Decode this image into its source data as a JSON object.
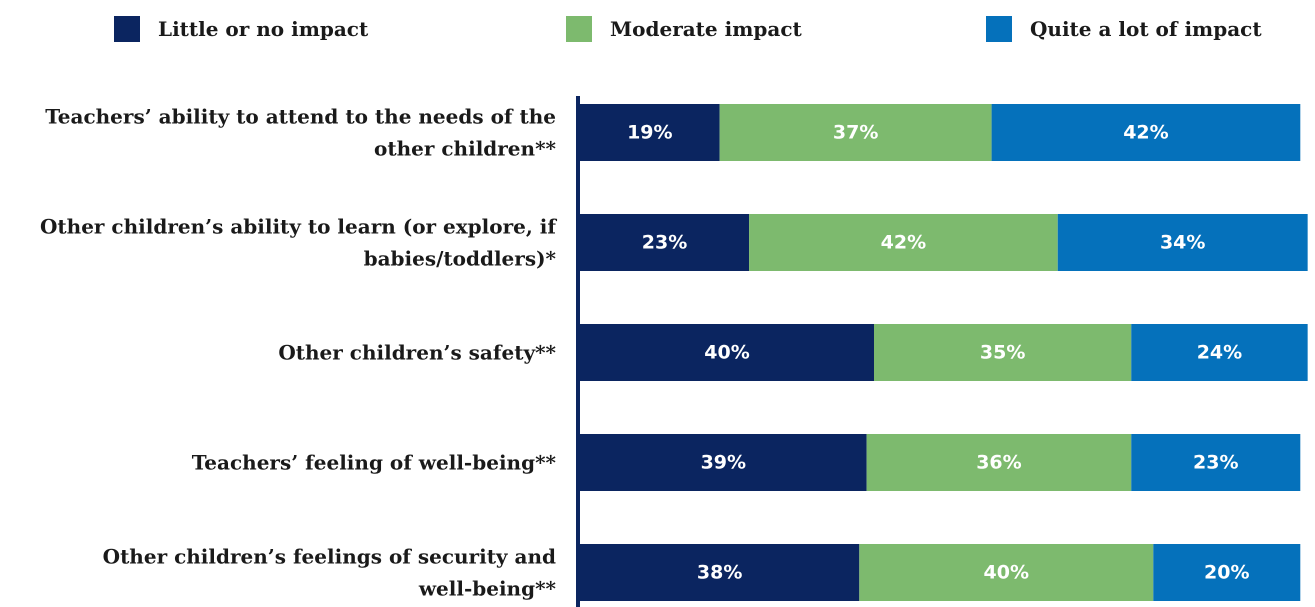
{
  "legend": {
    "items": [
      {
        "label": "Little or no impact",
        "color": "#0b2560"
      },
      {
        "label": "Moderate impact",
        "color": "#7dba6e"
      },
      {
        "label": "Quite a lot of impact",
        "color": "#0571bb"
      }
    ]
  },
  "chart_data": {
    "type": "bar",
    "orientation": "horizontal",
    "stacked": true,
    "categories": [
      [
        "Teachers’ ability to attend to the needs of the",
        "other children**"
      ],
      [
        "Other children’s ability to learn (or explore, if",
        "babies/toddlers)*"
      ],
      [
        "Other children’s safety**"
      ],
      [
        "Teachers’ feeling of well-being**"
      ],
      [
        "Other children’s feelings of security and",
        "well-being**"
      ]
    ],
    "series": [
      {
        "name": "Little or no impact",
        "color": "#0b2560",
        "values": [
          19,
          23,
          40,
          39,
          38
        ]
      },
      {
        "name": "Moderate impact",
        "color": "#7dba6e",
        "values": [
          37,
          42,
          35,
          36,
          40
        ]
      },
      {
        "name": "Quite a lot of impact",
        "color": "#0571bb",
        "values": [
          42,
          34,
          24,
          23,
          20
        ]
      }
    ],
    "value_suffix": "%",
    "xlim": [
      0,
      100
    ],
    "grid": false,
    "legend_position": "top"
  }
}
